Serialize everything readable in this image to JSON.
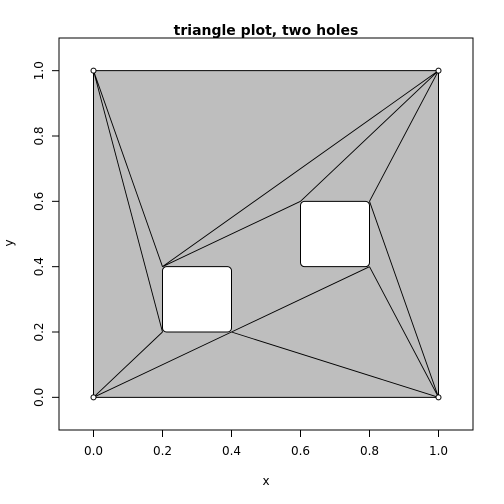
{
  "chart_data": {
    "type": "triangulation",
    "title": "triangle plot, two holes",
    "xlabel": "x",
    "ylabel": "y",
    "xlim": [
      -0.1,
      1.1
    ],
    "ylim": [
      -0.1,
      1.1
    ],
    "xticks": [
      0.0,
      0.2,
      0.4,
      0.6,
      0.8,
      1.0
    ],
    "xtick_labels": [
      "0.0",
      "0.2",
      "0.4",
      "0.6",
      "0.8",
      "1.0"
    ],
    "yticks": [
      0.0,
      0.2,
      0.4,
      0.6,
      0.8,
      1.0
    ],
    "ytick_labels": [
      "0.0",
      "0.2",
      "0.4",
      "0.6",
      "0.8",
      "1.0"
    ],
    "grid": false,
    "fill_color": "#bebebe",
    "hole_color": "#ffffff",
    "line_color": "#000000",
    "boundary": [
      [
        0,
        0
      ],
      [
        1,
        0
      ],
      [
        1,
        1
      ],
      [
        0,
        1
      ]
    ],
    "holes": [
      [
        [
          0.2,
          0.2
        ],
        [
          0.4,
          0.2
        ],
        [
          0.4,
          0.4
        ],
        [
          0.2,
          0.4
        ]
      ],
      [
        [
          0.6,
          0.4
        ],
        [
          0.8,
          0.4
        ],
        [
          0.8,
          0.6
        ],
        [
          0.6,
          0.6
        ]
      ]
    ],
    "corner_points": [
      [
        0,
        0
      ],
      [
        1,
        0
      ],
      [
        1,
        1
      ],
      [
        0,
        1
      ]
    ],
    "edges": [
      [
        [
          0,
          1
        ],
        [
          0.2,
          0.4
        ]
      ],
      [
        [
          0,
          1
        ],
        [
          0.2,
          0.2
        ]
      ],
      [
        [
          0,
          0
        ],
        [
          0.2,
          0.2
        ]
      ],
      [
        [
          0,
          0
        ],
        [
          0.4,
          0.2
        ]
      ],
      [
        [
          0.2,
          0.4
        ],
        [
          1,
          1
        ]
      ],
      [
        [
          0.2,
          0.4
        ],
        [
          0.6,
          0.6
        ]
      ],
      [
        [
          0.6,
          0.6
        ],
        [
          1,
          1
        ]
      ],
      [
        [
          0.8,
          0.6
        ],
        [
          1,
          1
        ]
      ],
      [
        [
          0.8,
          0.6
        ],
        [
          1,
          0
        ]
      ],
      [
        [
          0.8,
          0.4
        ],
        [
          1,
          0
        ]
      ],
      [
        [
          0.4,
          0.2
        ],
        [
          0.8,
          0.4
        ]
      ],
      [
        [
          0.4,
          0.2
        ],
        [
          1,
          0
        ]
      ]
    ]
  }
}
